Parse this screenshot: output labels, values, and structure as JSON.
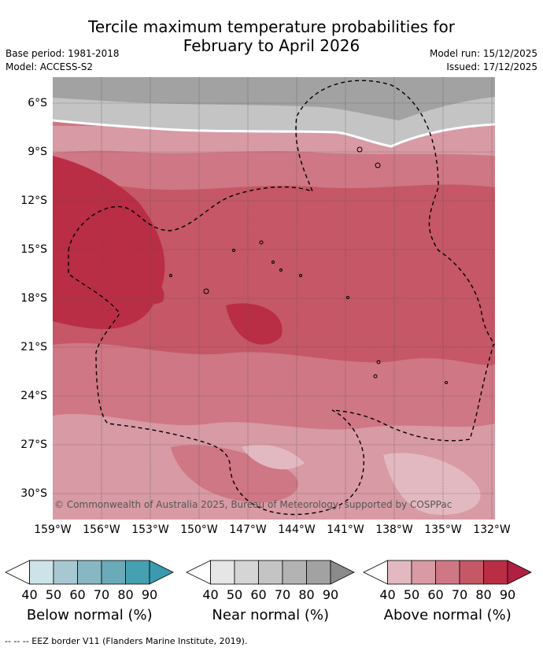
{
  "title_line1": "Tercile maximum temperature probabilities for",
  "title_line2": "February to April 2026",
  "base_period": "Base period: 1981-2018",
  "model": "Model: ACCESS-S2",
  "model_run": "Model run: 15/12/2025",
  "issued": "Issued: 17/12/2025",
  "copyright": "© Commonwealth of Australia 2025, Bureau of Meteorology, supported by COSPPac",
  "lat_labels": [
    "6°S",
    "9°S",
    "12°S",
    "15°S",
    "18°S",
    "21°S",
    "24°S",
    "27°S",
    "30°S"
  ],
  "lon_labels": [
    "159°W",
    "156°W",
    "153°W",
    "150°W",
    "147°W",
    "144°W",
    "141°W",
    "138°W",
    "135°W",
    "132°W"
  ],
  "colorbars": [
    {
      "label": "Below normal (%)",
      "ticks": [
        "40",
        "50",
        "60",
        "70",
        "80",
        "90"
      ],
      "colors": [
        "#ffffff",
        "#cde3e8",
        "#a7c8d0",
        "#88b7c4",
        "#6aaab9",
        "#45a0b2"
      ]
    },
    {
      "label": "Near normal (%)",
      "ticks": [
        "40",
        "50",
        "60",
        "70",
        "80",
        "90"
      ],
      "colors": [
        "#ffffff",
        "#e6e6e6",
        "#d5d5d5",
        "#c4c4c4",
        "#b3b3b3",
        "#a2a2a2"
      ]
    },
    {
      "label": "Above normal (%)",
      "ticks": [
        "40",
        "50",
        "60",
        "70",
        "80",
        "90"
      ],
      "colors": [
        "#ffffff",
        "#e3b9c1",
        "#d89aa4",
        "#cf7784",
        "#c55766",
        "#b92d45"
      ]
    }
  ],
  "footnote": "--  --  -- EEZ border V11 (Flanders Marine Institute, 2019)."
}
